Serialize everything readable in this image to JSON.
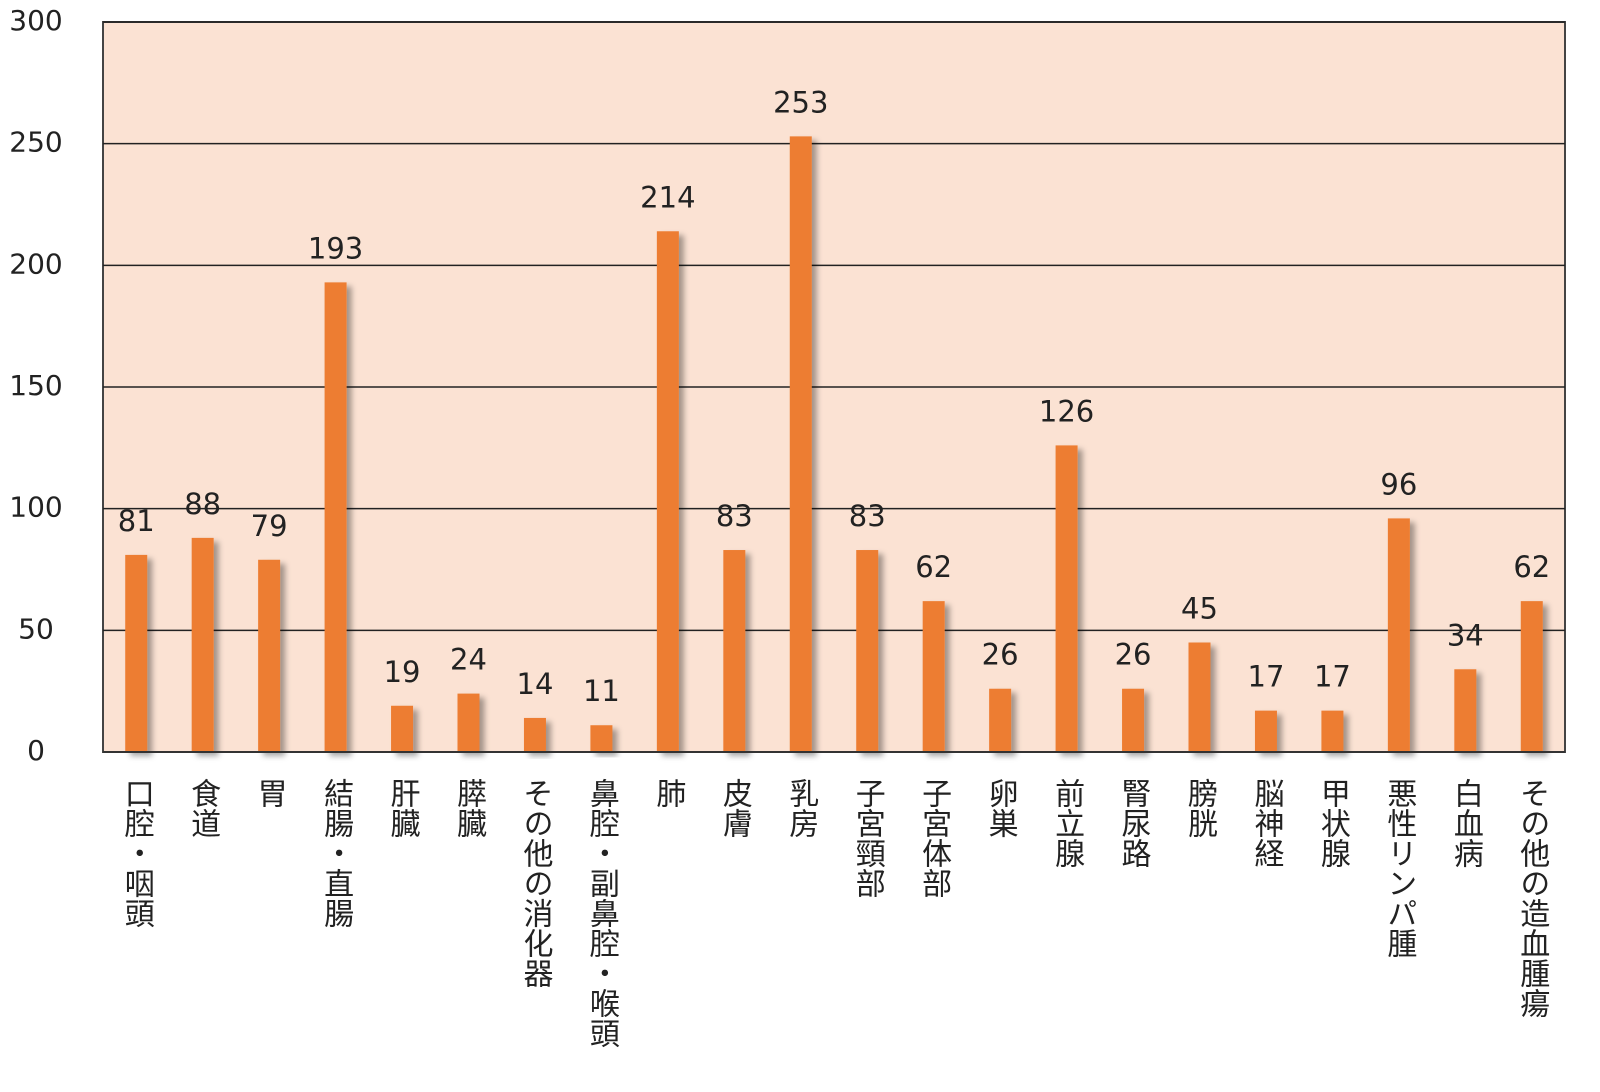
{
  "chart_data": {
    "type": "bar",
    "categories": [
      "口腔・咽頭",
      "食道",
      "胃",
      "結腸・直腸",
      "肝臓",
      "膵臓",
      "その他の消化器",
      "鼻腔・副鼻腔・喉頭",
      "肺",
      "皮膚",
      "乳房",
      "子宮頸部",
      "子宮体部",
      "卵巣",
      "前立腺",
      "腎尿路",
      "膀胱",
      "脳神経",
      "甲状腺",
      "悪性リンパ腫",
      "白血病",
      "その他の造血腫瘍"
    ],
    "values": [
      81,
      88,
      79,
      193,
      19,
      24,
      14,
      11,
      214,
      83,
      253,
      83,
      62,
      26,
      126,
      26,
      45,
      17,
      17,
      96,
      34,
      62
    ],
    "color": "#ed7d31",
    "ylim": [
      0,
      300
    ],
    "yticks": [
      0,
      50,
      100,
      150,
      200,
      250,
      300
    ],
    "grid": true
  }
}
